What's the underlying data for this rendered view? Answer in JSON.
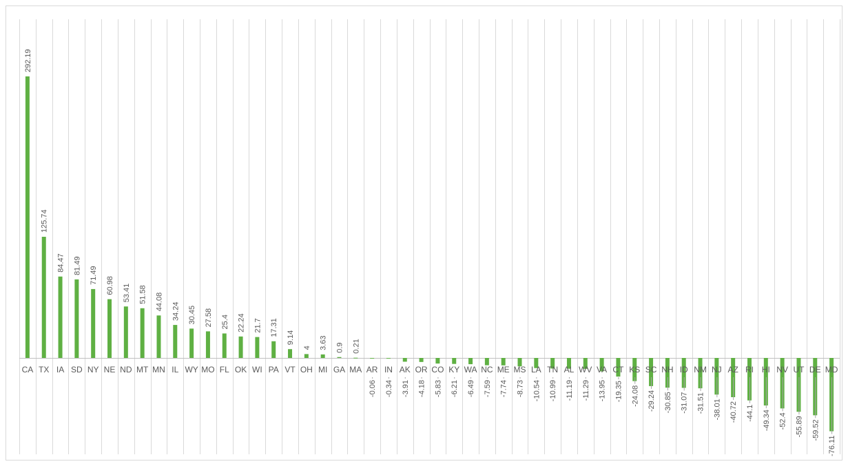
{
  "chart_data": {
    "type": "bar",
    "title": "",
    "xlabel": "",
    "ylabel": "",
    "ylim": [
      -85,
      310
    ],
    "grid": "vertical",
    "legend": "none",
    "bar_color": "#5fb043",
    "categories": [
      "CA",
      "TX",
      "IA",
      "SD",
      "NY",
      "NE",
      "ND",
      "MT",
      "MN",
      "IL",
      "WY",
      "MO",
      "FL",
      "OK",
      "WI",
      "PA",
      "VT",
      "OH",
      "MI",
      "GA",
      "MA",
      "AR",
      "IN",
      "AK",
      "OR",
      "CO",
      "KY",
      "WA",
      "NC",
      "ME",
      "MS",
      "LA",
      "TN",
      "AL",
      "WV",
      "VA",
      "CT",
      "KS",
      "SC",
      "NH",
      "ID",
      "NM",
      "NJ",
      "AZ",
      "RI",
      "HI",
      "NV",
      "UT",
      "DE",
      "MD"
    ],
    "values": [
      292.19,
      125.74,
      84.47,
      81.49,
      71.49,
      60.98,
      53.41,
      51.58,
      44.08,
      34.24,
      30.45,
      27.58,
      25.4,
      22.24,
      21.7,
      17.31,
      9.14,
      4,
      3.63,
      0.9,
      0.21,
      -0.06,
      -0.34,
      -3.91,
      -4.18,
      -5.83,
      -6.21,
      -6.49,
      -7.59,
      -7.74,
      -8.73,
      -10.54,
      -10.99,
      -11.19,
      -11.29,
      -13.95,
      -19.35,
      -24.08,
      -29.24,
      -30.85,
      -31.07,
      -31.51,
      -38.01,
      -40.72,
      -44.1,
      -49.34,
      -52.4,
      -55.89,
      -59.52,
      -76.11
    ],
    "value_labels": [
      "292.19",
      "125.74",
      "84.47",
      "81.49",
      "71.49",
      "60.98",
      "53.41",
      "51.58",
      "44.08",
      "34.24",
      "30.45",
      "27.58",
      "25.4",
      "22.24",
      "21.7",
      "17.31",
      "9.14",
      "4",
      "3.63",
      "0.9",
      "0.21",
      "-0.06",
      "-0.34",
      "-3.91",
      "-4.18",
      "-5.83",
      "-6.21",
      "-6.49",
      "-7.59",
      "-7.74",
      "-8.73",
      "-10.54",
      "-10.99",
      "-11.19",
      "-11.29",
      "-13.95",
      "-19.35",
      "-24.08",
      "-29.24",
      "-30.85",
      "-31.07",
      "-31.51",
      "-38.01",
      "-40.72",
      "-44.1",
      "-49.34",
      "-52.4",
      "-55.89",
      "-59.52",
      "-76.11"
    ]
  }
}
